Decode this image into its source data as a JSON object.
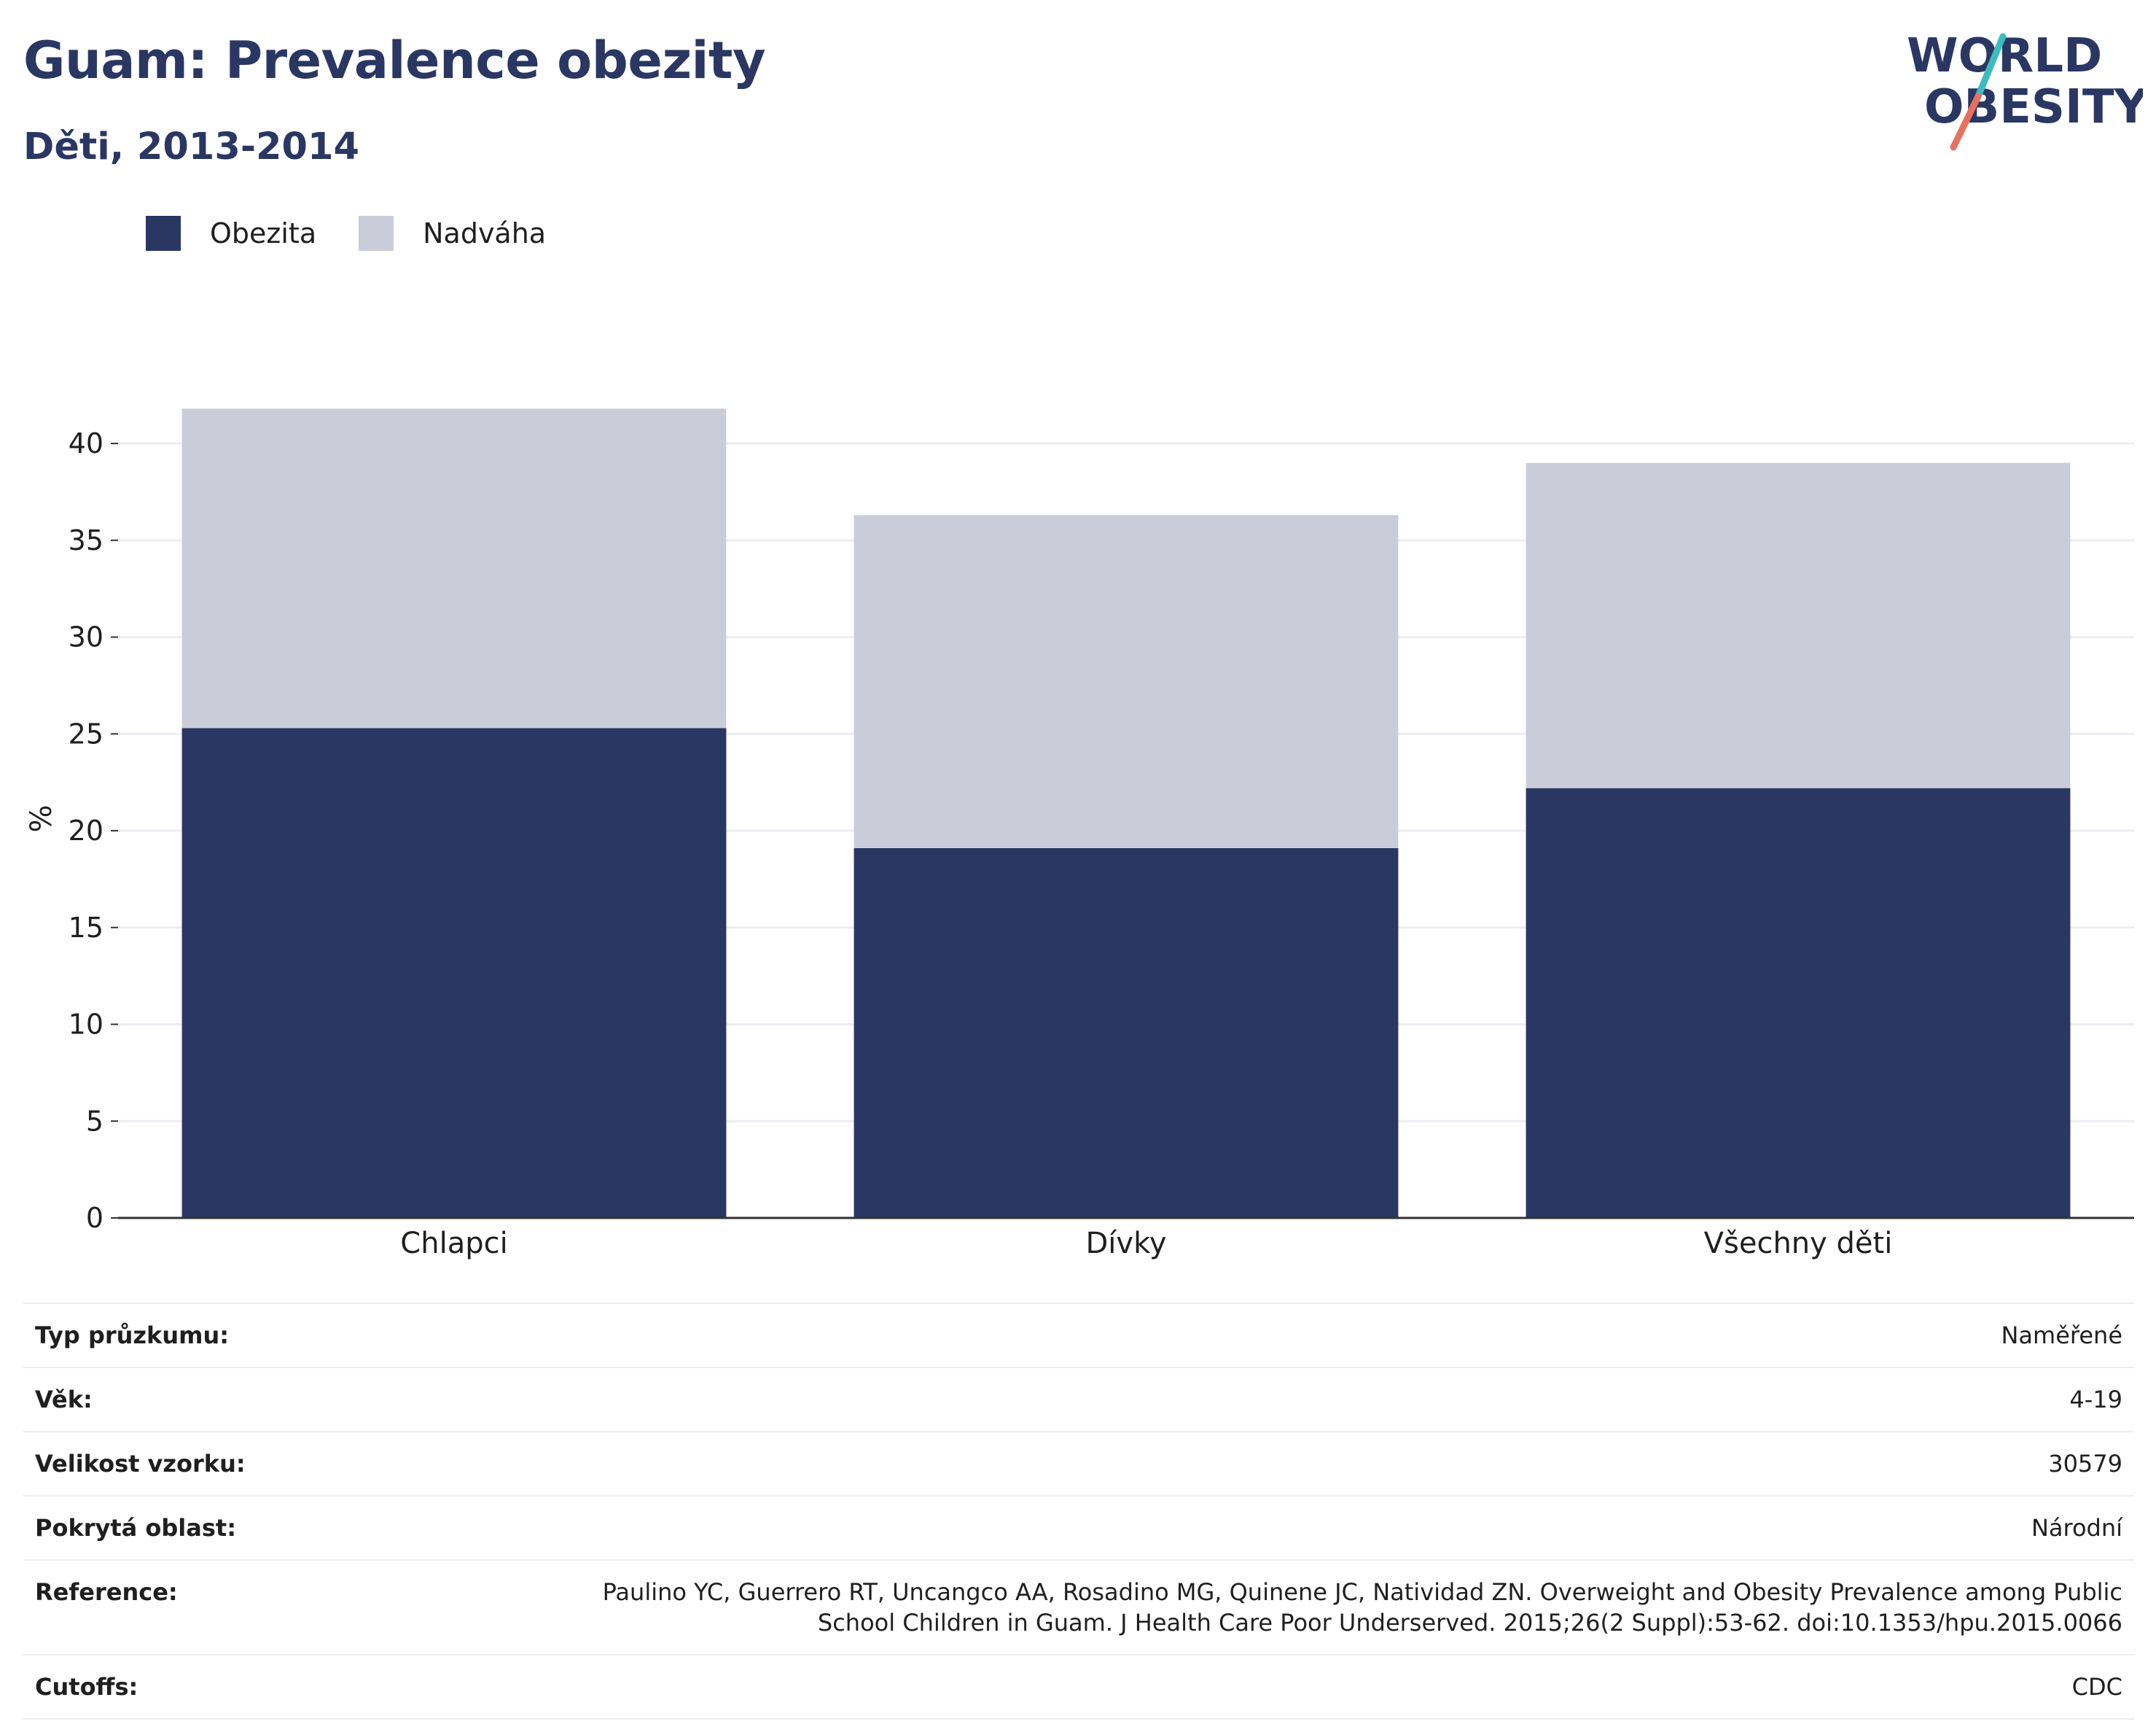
{
  "header": {
    "title": "Guam: Prevalence obezity",
    "subtitle": "Děti, 2013-2014"
  },
  "logo": {
    "line1": "WORLD",
    "line2": "OBESITY"
  },
  "colors": {
    "obesity": "#2a3763",
    "overweight": "#cacdd9",
    "grid": "#eceef2",
    "axis": "#333333",
    "logo_teal": "#3dbcbf",
    "logo_coral": "#e8705e"
  },
  "chart_data": {
    "type": "bar",
    "stacked": true,
    "categories": [
      "Chlapci",
      "Dívky",
      "Všechny děti"
    ],
    "series": [
      {
        "name": "Obezita",
        "values": [
          25.3,
          19.1,
          22.2
        ]
      },
      {
        "name": "Nadváha",
        "values": [
          16.5,
          17.2,
          16.8
        ]
      }
    ],
    "ylabel": "%",
    "ylim": [
      0,
      42
    ],
    "yticks": [
      0,
      5,
      10,
      15,
      20,
      25,
      30,
      35,
      40
    ],
    "grid": true,
    "legend": "top-left"
  },
  "info": [
    {
      "label": "Typ průzkumu:",
      "value": "Naměřené"
    },
    {
      "label": "Věk:",
      "value": "4-19"
    },
    {
      "label": "Velikost vzorku:",
      "value": "30579"
    },
    {
      "label": "Pokrytá oblast:",
      "value": "Národní"
    },
    {
      "label": "Reference:",
      "value": "Paulino YC, Guerrero RT, Uncangco AA, Rosadino MG, Quinene JC, Natividad ZN. Overweight and Obesity Prevalence among Public School Children in Guam. J Health Care Poor Underserved. 2015;26(2 Suppl):53-62. doi:10.1353/hpu.2015.0066"
    },
    {
      "label": "Cutoffs:",
      "value": "CDC"
    }
  ]
}
